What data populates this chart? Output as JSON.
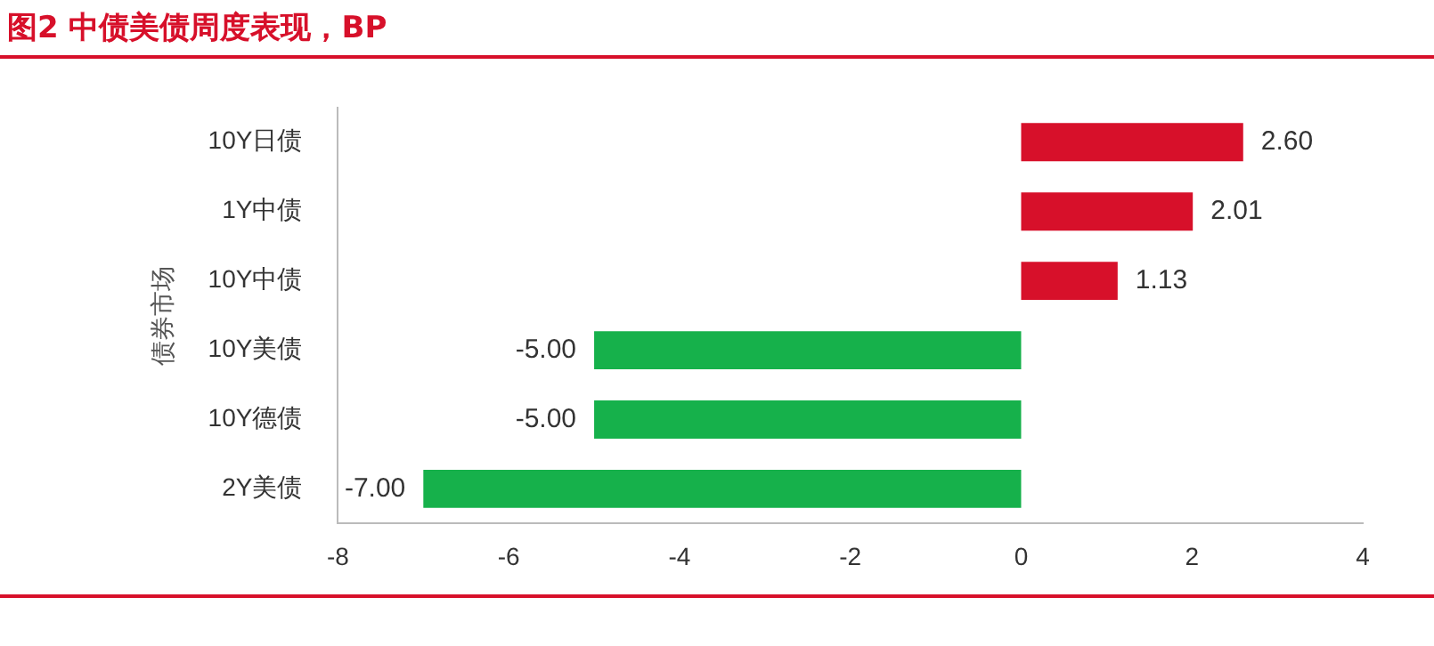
{
  "chart_data": {
    "type": "bar",
    "orientation": "horizontal",
    "title": "图2  中债美债周度表现，BP",
    "ylabel": "债券市场",
    "categories": [
      "10Y日债",
      "1Y中债",
      "10Y中债",
      "10Y美债",
      "10Y德债",
      "2Y美债"
    ],
    "values": [
      2.6,
      2.01,
      1.13,
      -5.0,
      -5.0,
      -7.0
    ],
    "colors": [
      "#d7102a",
      "#d7102a",
      "#d7102a",
      "#16b14b",
      "#16b14b",
      "#16b14b"
    ],
    "value_labels": [
      "2.60",
      "2.01",
      "1.13",
      "-5.00",
      "-5.00",
      "-7.00"
    ],
    "xlim": [
      -8,
      4
    ],
    "xticks": [
      -8,
      -6,
      -4,
      -2,
      0,
      2,
      4
    ],
    "grid": false,
    "legend": false
  }
}
